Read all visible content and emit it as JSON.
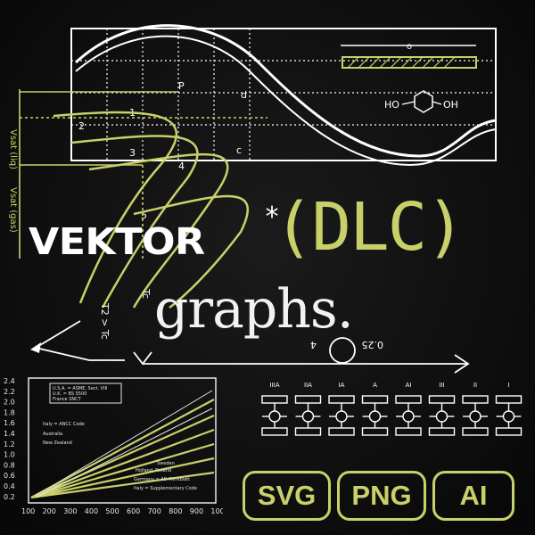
{
  "title_word": "VEKTOR",
  "title_asterisk": "*",
  "title_dlc": "(DLC)",
  "title_sub": "graphs.",
  "badges": {
    "svg": "SVG",
    "png": "PNG",
    "ai": "AI"
  },
  "diagram_labels": {
    "vsat_liq": "Vsat (liq)",
    "vsat_gas": "Vsat (gas)",
    "t2_gt_tc": "T2 > Tc",
    "tc": "Tc",
    "rotated_0_25": "0.25",
    "rotated_4": "4",
    "phenol_left": "HO",
    "phenol_right": "OH",
    "dim_o": "o",
    "curve_labels": [
      "P",
      "2",
      "3",
      "4",
      "5",
      "1",
      "c",
      "d"
    ]
  },
  "mini_chart": {
    "y_ticks": [
      "2.4",
      "2.2",
      "2.0",
      "1.8",
      "1.6",
      "1.4",
      "1.2",
      "1.0",
      "0.8",
      "0.6",
      "0.4",
      "0.2"
    ],
    "x_ticks": [
      "100",
      "200",
      "300",
      "400",
      "500",
      "600",
      "700",
      "800",
      "900",
      "1000"
    ],
    "legend_box": [
      "U.S.A. = ASME, Sect. VIII",
      "U.K. = BS 5500",
      "France SNCT"
    ],
    "line_labels": [
      "Italy = ANCC Code",
      "Australia",
      "New Zealand",
      "Holland, Finland",
      "Germany = AD Merkblatt",
      "Italy = Supplementary Code",
      "Sweden"
    ]
  },
  "roman_labels": [
    "IIIA",
    "IIA",
    "IA",
    "A",
    "AI",
    "III",
    "II",
    "I"
  ],
  "colors": {
    "accent": "#c9d06a",
    "ink": "#ffffff",
    "background": "#0c0c0c"
  }
}
